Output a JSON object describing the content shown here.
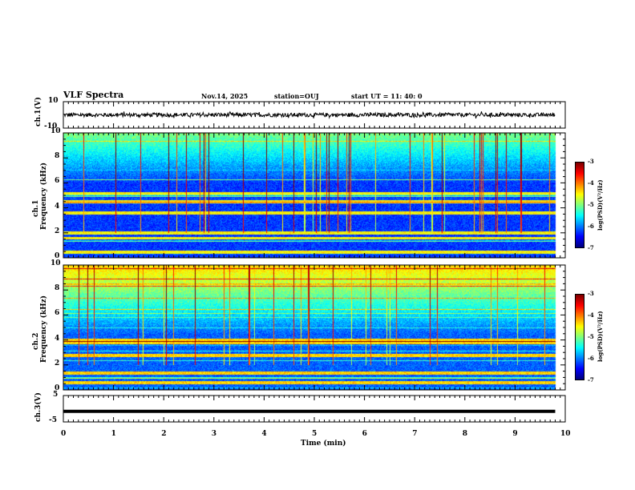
{
  "header": {
    "title": "VLF Spectra",
    "date": "Nov.14, 2025",
    "station": "station=OUJ",
    "start": "start UT = 11: 40: 0"
  },
  "panels": {
    "ch1_wave": {
      "ylabel": "ch.1(V)",
      "ymax_label": "10",
      "ymin_label": "-10"
    },
    "ch1_spec": {
      "ylabel_top": "ch.1",
      "ylabel": "Frequency (kHz)",
      "yticks": [
        "0",
        "2",
        "4",
        "6",
        "8",
        "10"
      ]
    },
    "ch2_spec": {
      "ylabel_top": "ch.2",
      "ylabel": "Frequency (kHz)",
      "yticks": [
        "0",
        "2",
        "4",
        "6",
        "8",
        "10"
      ]
    },
    "ch3_wave": {
      "ylabel": "ch.3(V)",
      "ymax_label": "5",
      "ymin_label": "-5"
    }
  },
  "xaxis": {
    "label": "Time (min)",
    "ticks": [
      "0",
      "1",
      "2",
      "3",
      "4",
      "5",
      "6",
      "7",
      "8",
      "9",
      "10"
    ]
  },
  "colorbar": {
    "label": "log(PSD)(V²/Hz)",
    "ticks": [
      "-3",
      "-4",
      "-5",
      "-6",
      "-7"
    ]
  },
  "chart_data": [
    {
      "type": "line",
      "title": "VLF Spectra",
      "ylabel": "ch.1(V)",
      "xlabel": "Time (min)",
      "xlim": [
        0,
        10
      ],
      "ylim": [
        -10,
        10
      ],
      "series": [
        {
          "x_range": [
            0,
            9.8
          ],
          "approx_value": 0,
          "approx_amplitude": 1.5
        }
      ]
    },
    {
      "type": "heatmap",
      "ylabel": "ch.1 Frequency (kHz)",
      "xlabel": "Time (min)",
      "xlim": [
        0,
        10
      ],
      "ylim": [
        0,
        10
      ],
      "data_end_min": 9.8,
      "color_scale": {
        "label": "log(PSD)(V²/Hz)",
        "range": [
          -7,
          -3
        ]
      },
      "dominant_bands_khz": [
        0.5,
        1.6,
        2.0,
        3.6,
        4.5,
        5.2
      ]
    },
    {
      "type": "heatmap",
      "ylabel": "ch.2 Frequency (kHz)",
      "xlabel": "Time (min)",
      "xlim": [
        0,
        10
      ],
      "ylim": [
        0,
        10
      ],
      "data_end_min": 9.8,
      "color_scale": {
        "label": "log(PSD)(V²/Hz)",
        "range": [
          -7,
          -3
        ]
      },
      "dominant_bands_khz": [
        0.6,
        1.4,
        2.8,
        3.8,
        4.0
      ]
    },
    {
      "type": "line",
      "ylabel": "ch.3(V)",
      "xlabel": "Time (min)",
      "xlim": [
        0,
        10
      ],
      "ylim": [
        -5,
        5
      ],
      "series": [
        {
          "x_range": [
            0,
            9.8
          ],
          "approx_value": -1
        }
      ]
    }
  ],
  "colors": {
    "trace": "#000000",
    "spec_low": "#0a1a9c",
    "spec_high": "#ff2a00"
  }
}
